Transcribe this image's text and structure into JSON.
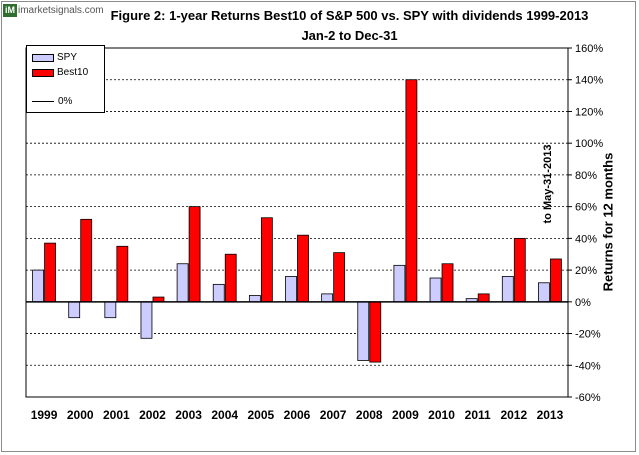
{
  "brand": {
    "badge": "iM",
    "name": "imarketsignals.com"
  },
  "chart_data": {
    "type": "bar",
    "title": "Figure 2:  1-year Returns Best10 of S&P 500  vs. SPY with dividends  1999-2013",
    "subtitle": "Jan-2 to Dec-31",
    "ylabel": "Returns for 12 months",
    "ylabel_secondary": "to May-31-2013",
    "categories": [
      "1999",
      "2000",
      "2001",
      "2002",
      "2003",
      "2004",
      "2005",
      "2006",
      "2007",
      "2008",
      "2009",
      "2010",
      "2011",
      "2012",
      "2013"
    ],
    "series": [
      {
        "name": "SPY",
        "color": "#ccccff",
        "values": [
          20,
          -10,
          -10,
          -23,
          24,
          11,
          4,
          16,
          5,
          -37,
          23,
          15,
          2,
          16,
          12
        ]
      },
      {
        "name": "Best10",
        "color": "#ff0000",
        "values": [
          37,
          52,
          35,
          3,
          60,
          30,
          53,
          42,
          31,
          -38,
          140,
          24,
          5,
          40,
          27
        ]
      }
    ],
    "zero_line_label": "0%",
    "ylim": [
      -60,
      160
    ],
    "ytick_values": [
      -60,
      -40,
      -20,
      0,
      20,
      40,
      60,
      80,
      100,
      120,
      140,
      160
    ],
    "ytick_labels": [
      "-60%",
      "-40%",
      "-20%",
      "0%",
      "20%",
      "40%",
      "60%",
      "80%",
      "100%",
      "120%",
      "140%",
      "160%"
    ],
    "grid": "dashed horizontal",
    "legend_position": "top-left",
    "yaxis_side": "right"
  }
}
